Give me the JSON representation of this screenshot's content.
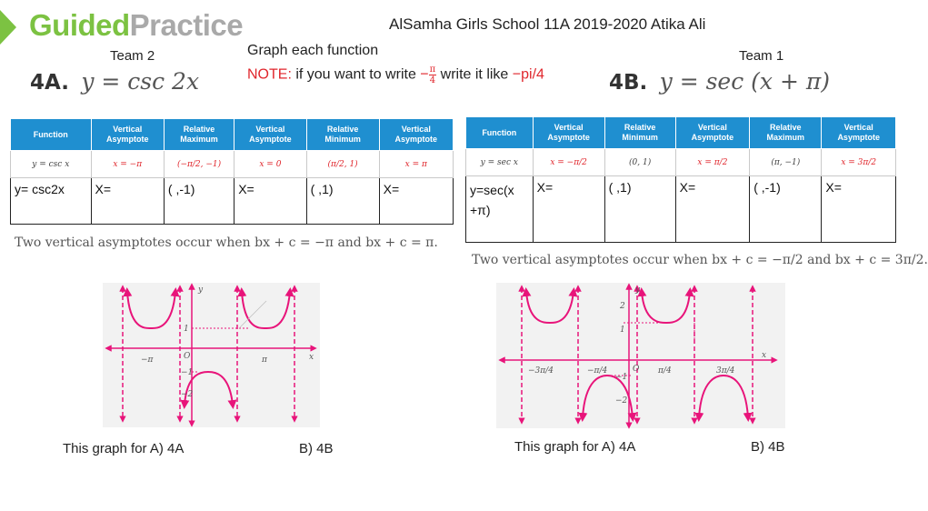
{
  "header": {
    "logo_guided": "Guided",
    "logo_practice": "Practice",
    "school": "AlSamha Girls  School    11A 2019-2020 Atika Ali",
    "instruction": "Graph each function",
    "note_label": "NOTE:",
    "note_text_before": " if you want to write ",
    "note_frac_sign": "−",
    "note_frac_num": "π",
    "note_frac_den": "4",
    "note_text_after": " write it like ",
    "note_example": "−pi/4"
  },
  "left": {
    "team": "Team 2",
    "problem": "4A.",
    "equation": "y = csc 2x",
    "headers": [
      "Function",
      "Vertical Asymptote",
      "Relative Maximum",
      "Vertical Asymptote",
      "Relative Minimum",
      "Vertical Asymptote"
    ],
    "example": [
      "y = csc x",
      "x = −π",
      "(−π/2, −1)",
      "x = 0",
      "(π/2, 1)",
      "x = π"
    ],
    "answer": [
      "y= csc2x",
      "X=",
      "(      ,-1)",
      "X=",
      "(       ,1)",
      "X="
    ],
    "caption": "Two vertical asymptotes occur when bx + c = −π and bx + c = π.",
    "graph_labels": {
      "y": "y",
      "x": "x",
      "origin": "O",
      "neg_pi": "−π",
      "pi": "π",
      "one": "1",
      "neg_one": "−1",
      "neg_two": "−2"
    },
    "question": "This graph for  A) 4A",
    "option_b": "B) 4B"
  },
  "right": {
    "team": "Team 1",
    "problem": "4B.",
    "equation": "y = sec (x + π)",
    "headers": [
      "Function",
      "Vertical Asymptote",
      "Relative Minimum",
      "Vertical Asymptote",
      "Relative Maximum",
      "Vertical Asymptote"
    ],
    "example": [
      "y = sec x",
      "x = −π/2",
      "(0, 1)",
      "x = π/2",
      "(π, −1)",
      "x = 3π/2"
    ],
    "answer": [
      "y=sec(x +π)",
      "X=",
      "(       ,1)",
      "X=",
      "(       ,-1)",
      "X="
    ],
    "caption": "Two vertical asymptotes occur when bx + c = −π/2 and bx + c = 3π/2.",
    "graph_labels": {
      "y": "y",
      "x": "x",
      "origin": "O",
      "two": "2",
      "one": "1",
      "neg_one": "−1",
      "neg_two": "−2",
      "neg_3pi_4": "−3π/4",
      "neg_pi_4": "−π/4",
      "pi_4": "π/4",
      "three_pi_4": "3π/4"
    },
    "question": "This graph for  A) 4A",
    "option_b": "B) 4B"
  },
  "colors": {
    "accent_green": "#7cc242",
    "table_blue": "#1f8fd0",
    "graph_magenta": "#e8147a",
    "note_red": "#e0262c"
  }
}
